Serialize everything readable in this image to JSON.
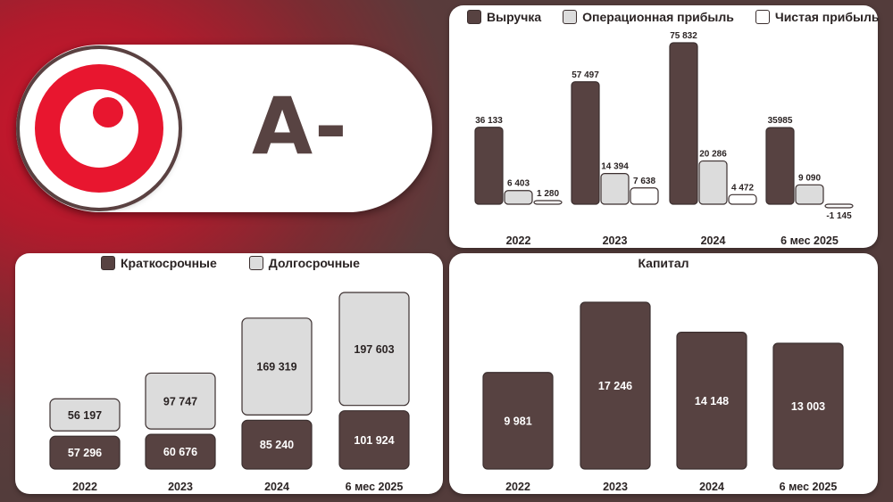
{
  "rating": {
    "grade": "A-"
  },
  "colors": {
    "revenue": "#574241",
    "operating": "#dcdcdc",
    "net": "#ffffff",
    "short_term": "#574241",
    "long_term": "#dcdcdc",
    "capital": "#574241",
    "brand_red": "#e8162f"
  },
  "icons": {
    "logo": "brand-logo-icon"
  },
  "chart_data": [
    {
      "type": "bar",
      "categories": [
        "2022",
        "2023",
        "2024",
        "6 мес 2025"
      ],
      "series": [
        {
          "name": "Выручка",
          "values": [
            36133,
            57497,
            75832,
            35985
          ],
          "labels": [
            "36 133",
            "57 497",
            "75 832",
            "35985"
          ]
        },
        {
          "name": "Операционная прибыль",
          "values": [
            6403,
            14394,
            20286,
            9090
          ],
          "labels": [
            "6 403",
            "14 394",
            "20 286",
            "9 090"
          ]
        },
        {
          "name": "Чистая прибыль",
          "values": [
            1280,
            7638,
            4472,
            -1145
          ],
          "labels": [
            "1 280",
            "7 638",
            "4 472",
            "-1 145"
          ]
        }
      ],
      "ylim": [
        -1145,
        75832
      ],
      "grid": false,
      "legend": "top"
    },
    {
      "type": "bar",
      "stacked": true,
      "categories": [
        "2022",
        "2023",
        "2024",
        "6 мес 2025"
      ],
      "series": [
        {
          "name": "Краткосрочные",
          "values": [
            57296,
            60676,
            85240,
            101924
          ],
          "labels": [
            "57 296",
            "60 676",
            "85 240",
            "101 924"
          ]
        },
        {
          "name": "Долгосрочные",
          "values": [
            56197,
            97747,
            169319,
            197603
          ],
          "labels": [
            "56 197",
            "97 747",
            "169 319",
            "197 603"
          ]
        }
      ],
      "grid": false,
      "legend": "top"
    },
    {
      "type": "bar",
      "title": "Капитал",
      "categories": [
        "2022",
        "2023",
        "2024",
        "6 мес 2025"
      ],
      "values": [
        9981,
        17246,
        14148,
        13003
      ],
      "labels": [
        "9 981",
        "17 246",
        "14 148",
        "13 003"
      ],
      "grid": false
    }
  ]
}
